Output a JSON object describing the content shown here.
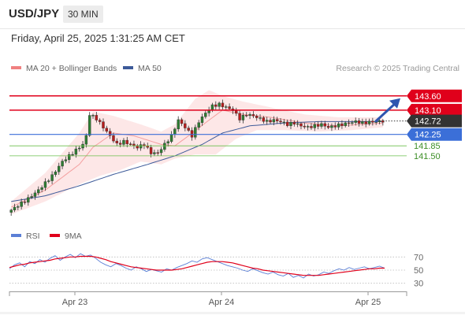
{
  "header": {
    "symbol": "USD/JPY",
    "timeframe": "30 MIN"
  },
  "datetime": "Friday, April 25, 2025 1:31:25 AM CET",
  "legend": {
    "ma20_label": "MA 20 + Bollinger Bands",
    "ma50_label": "MA 50",
    "credit": "Research © 2025 Trading Central",
    "rsi_label": "RSI",
    "rsi_ma_label": "9MA"
  },
  "colors": {
    "ma20": "#f08080",
    "ma50": "#3d5a99",
    "bands_fill": "#fde3e3",
    "resistance": "#e0001b",
    "pivot": "#3b6fd8",
    "support": "#6abf4b",
    "current": "#333333",
    "candle_up": "#2e7d32",
    "candle_down": "#b71c1c",
    "arrow": "#2f56b0",
    "rsi": "#5b7fd6",
    "rsi_ma": "#e0001b"
  },
  "chart_data": [
    {
      "type": "candlestick",
      "x_ticks": [
        "Apr 23",
        "Apr 24",
        "Apr 25"
      ],
      "ylim": [
        139.4,
        144.2
      ],
      "levels": [
        {
          "value": 143.6,
          "label": "143.60",
          "kind": "resistance"
        },
        {
          "value": 143.1,
          "label": "143.10",
          "kind": "resistance"
        },
        {
          "value": 142.72,
          "label": "142.72",
          "kind": "current"
        },
        {
          "value": 142.25,
          "label": "142.25",
          "kind": "pivot"
        },
        {
          "value": 141.85,
          "label": "141.85",
          "kind": "support"
        },
        {
          "value": 141.5,
          "label": "141.50",
          "kind": "support"
        }
      ],
      "series": [
        {
          "name": "MA 20 + Bollinger Bands"
        },
        {
          "name": "MA 50"
        }
      ],
      "anchors": [
        [
          0,
          139.6
        ],
        [
          5,
          140.0
        ],
        [
          8,
          140.3
        ],
        [
          12,
          140.8
        ],
        [
          15,
          141.3
        ],
        [
          18,
          141.6
        ],
        [
          21,
          141.9
        ],
        [
          22,
          142.2
        ],
        [
          23,
          142.95
        ],
        [
          25,
          142.8
        ],
        [
          27,
          142.5
        ],
        [
          29,
          142.2
        ],
        [
          31,
          141.9
        ],
        [
          33,
          142.0
        ],
        [
          35,
          141.9
        ],
        [
          37,
          141.8
        ],
        [
          39,
          141.9
        ],
        [
          41,
          141.6
        ],
        [
          43,
          141.6
        ],
        [
          45,
          141.9
        ],
        [
          47,
          142.2
        ],
        [
          49,
          142.75
        ],
        [
          51,
          142.5
        ],
        [
          53,
          142.2
        ],
        [
          55,
          142.7
        ],
        [
          57,
          143.0
        ],
        [
          59,
          143.25
        ],
        [
          61,
          143.3
        ],
        [
          63,
          143.2
        ],
        [
          65,
          143.1
        ],
        [
          67,
          142.8
        ],
        [
          69,
          142.95
        ],
        [
          71,
          142.9
        ],
        [
          73,
          142.8
        ],
        [
          75,
          142.7
        ],
        [
          77,
          142.75
        ],
        [
          79,
          142.7
        ],
        [
          81,
          142.6
        ],
        [
          83,
          142.65
        ],
        [
          85,
          142.55
        ],
        [
          87,
          142.5
        ],
        [
          89,
          142.55
        ],
        [
          91,
          142.6
        ],
        [
          93,
          142.5
        ],
        [
          95,
          142.55
        ],
        [
          97,
          142.6
        ],
        [
          99,
          142.65
        ],
        [
          101,
          142.7
        ],
        [
          103,
          142.65
        ],
        [
          105,
          142.68
        ],
        [
          107,
          142.7
        ],
        [
          109,
          142.72
        ]
      ],
      "ma20": [
        [
          0,
          139.7
        ],
        [
          10,
          140.3
        ],
        [
          20,
          141.2
        ],
        [
          24,
          141.8
        ],
        [
          30,
          142.3
        ],
        [
          36,
          142.2
        ],
        [
          44,
          141.9
        ],
        [
          48,
          141.85
        ],
        [
          52,
          142.2
        ],
        [
          58,
          142.75
        ],
        [
          62,
          143.1
        ],
        [
          68,
          142.95
        ],
        [
          76,
          142.85
        ],
        [
          86,
          142.65
        ],
        [
          96,
          142.55
        ],
        [
          109,
          142.65
        ]
      ],
      "ma50": [
        [
          0,
          139.9
        ],
        [
          10,
          140.1
        ],
        [
          20,
          140.45
        ],
        [
          30,
          140.85
        ],
        [
          40,
          141.2
        ],
        [
          48,
          141.5
        ],
        [
          56,
          141.9
        ],
        [
          62,
          142.3
        ],
        [
          70,
          142.55
        ],
        [
          80,
          142.65
        ],
        [
          90,
          142.7
        ],
        [
          100,
          142.7
        ],
        [
          109,
          142.7
        ]
      ],
      "band_upper": [
        [
          0,
          139.9
        ],
        [
          10,
          140.9
        ],
        [
          20,
          142.3
        ],
        [
          24,
          143.05
        ],
        [
          30,
          142.9
        ],
        [
          38,
          142.6
        ],
        [
          44,
          142.35
        ],
        [
          48,
          142.6
        ],
        [
          54,
          143.5
        ],
        [
          58,
          143.8
        ],
        [
          62,
          143.6
        ],
        [
          68,
          143.4
        ],
        [
          76,
          143.2
        ],
        [
          86,
          142.95
        ],
        [
          96,
          142.85
        ],
        [
          109,
          142.85
        ]
      ],
      "band_lower": [
        [
          0,
          139.45
        ],
        [
          10,
          139.9
        ],
        [
          20,
          140.5
        ],
        [
          26,
          140.8
        ],
        [
          32,
          141.0
        ],
        [
          38,
          141.3
        ],
        [
          44,
          141.2
        ],
        [
          48,
          141.4
        ],
        [
          54,
          141.55
        ],
        [
          60,
          141.55
        ],
        [
          66,
          142.1
        ],
        [
          72,
          142.4
        ],
        [
          80,
          142.4
        ],
        [
          90,
          142.35
        ],
        [
          100,
          142.4
        ],
        [
          109,
          142.5
        ]
      ],
      "forecast": {
        "from": 142.72,
        "to": 143.6
      }
    },
    {
      "type": "line",
      "title": "RSI",
      "ylim": [
        20,
        80
      ],
      "y_ticks": [
        70,
        50,
        30
      ],
      "series": [
        {
          "name": "RSI",
          "values": [
            52,
            58,
            61,
            55,
            63,
            60,
            66,
            62,
            68,
            72,
            65,
            70,
            74,
            69,
            75,
            71,
            73,
            68,
            62,
            58,
            55,
            60,
            57,
            53,
            50,
            55,
            52,
            48,
            51,
            49,
            47,
            52,
            50,
            54,
            57,
            60,
            64,
            62,
            67,
            69,
            66,
            63,
            60,
            57,
            55,
            53,
            50,
            48,
            52,
            49,
            46,
            44,
            47,
            43,
            41,
            45,
            39,
            42,
            38,
            44,
            41,
            43,
            47,
            45,
            49,
            52,
            50,
            54,
            51,
            53,
            55,
            52,
            54,
            56,
            53
          ]
        },
        {
          "name": "9MA",
          "values": [
            54,
            56,
            58,
            59,
            61,
            62,
            63,
            64,
            65,
            67,
            68,
            69,
            70,
            70,
            71,
            71,
            71,
            70,
            68,
            66,
            63,
            61,
            59,
            57,
            55,
            54,
            53,
            52,
            51,
            50,
            50,
            50,
            50,
            51,
            52,
            54,
            56,
            58,
            60,
            62,
            63,
            63,
            63,
            62,
            61,
            59,
            57,
            55,
            53,
            52,
            50,
            49,
            48,
            47,
            46,
            45,
            44,
            43,
            42,
            42,
            42,
            42,
            43,
            44,
            45,
            46,
            47,
            48,
            49,
            50,
            51,
            52,
            52,
            53,
            53
          ]
        }
      ]
    }
  ]
}
